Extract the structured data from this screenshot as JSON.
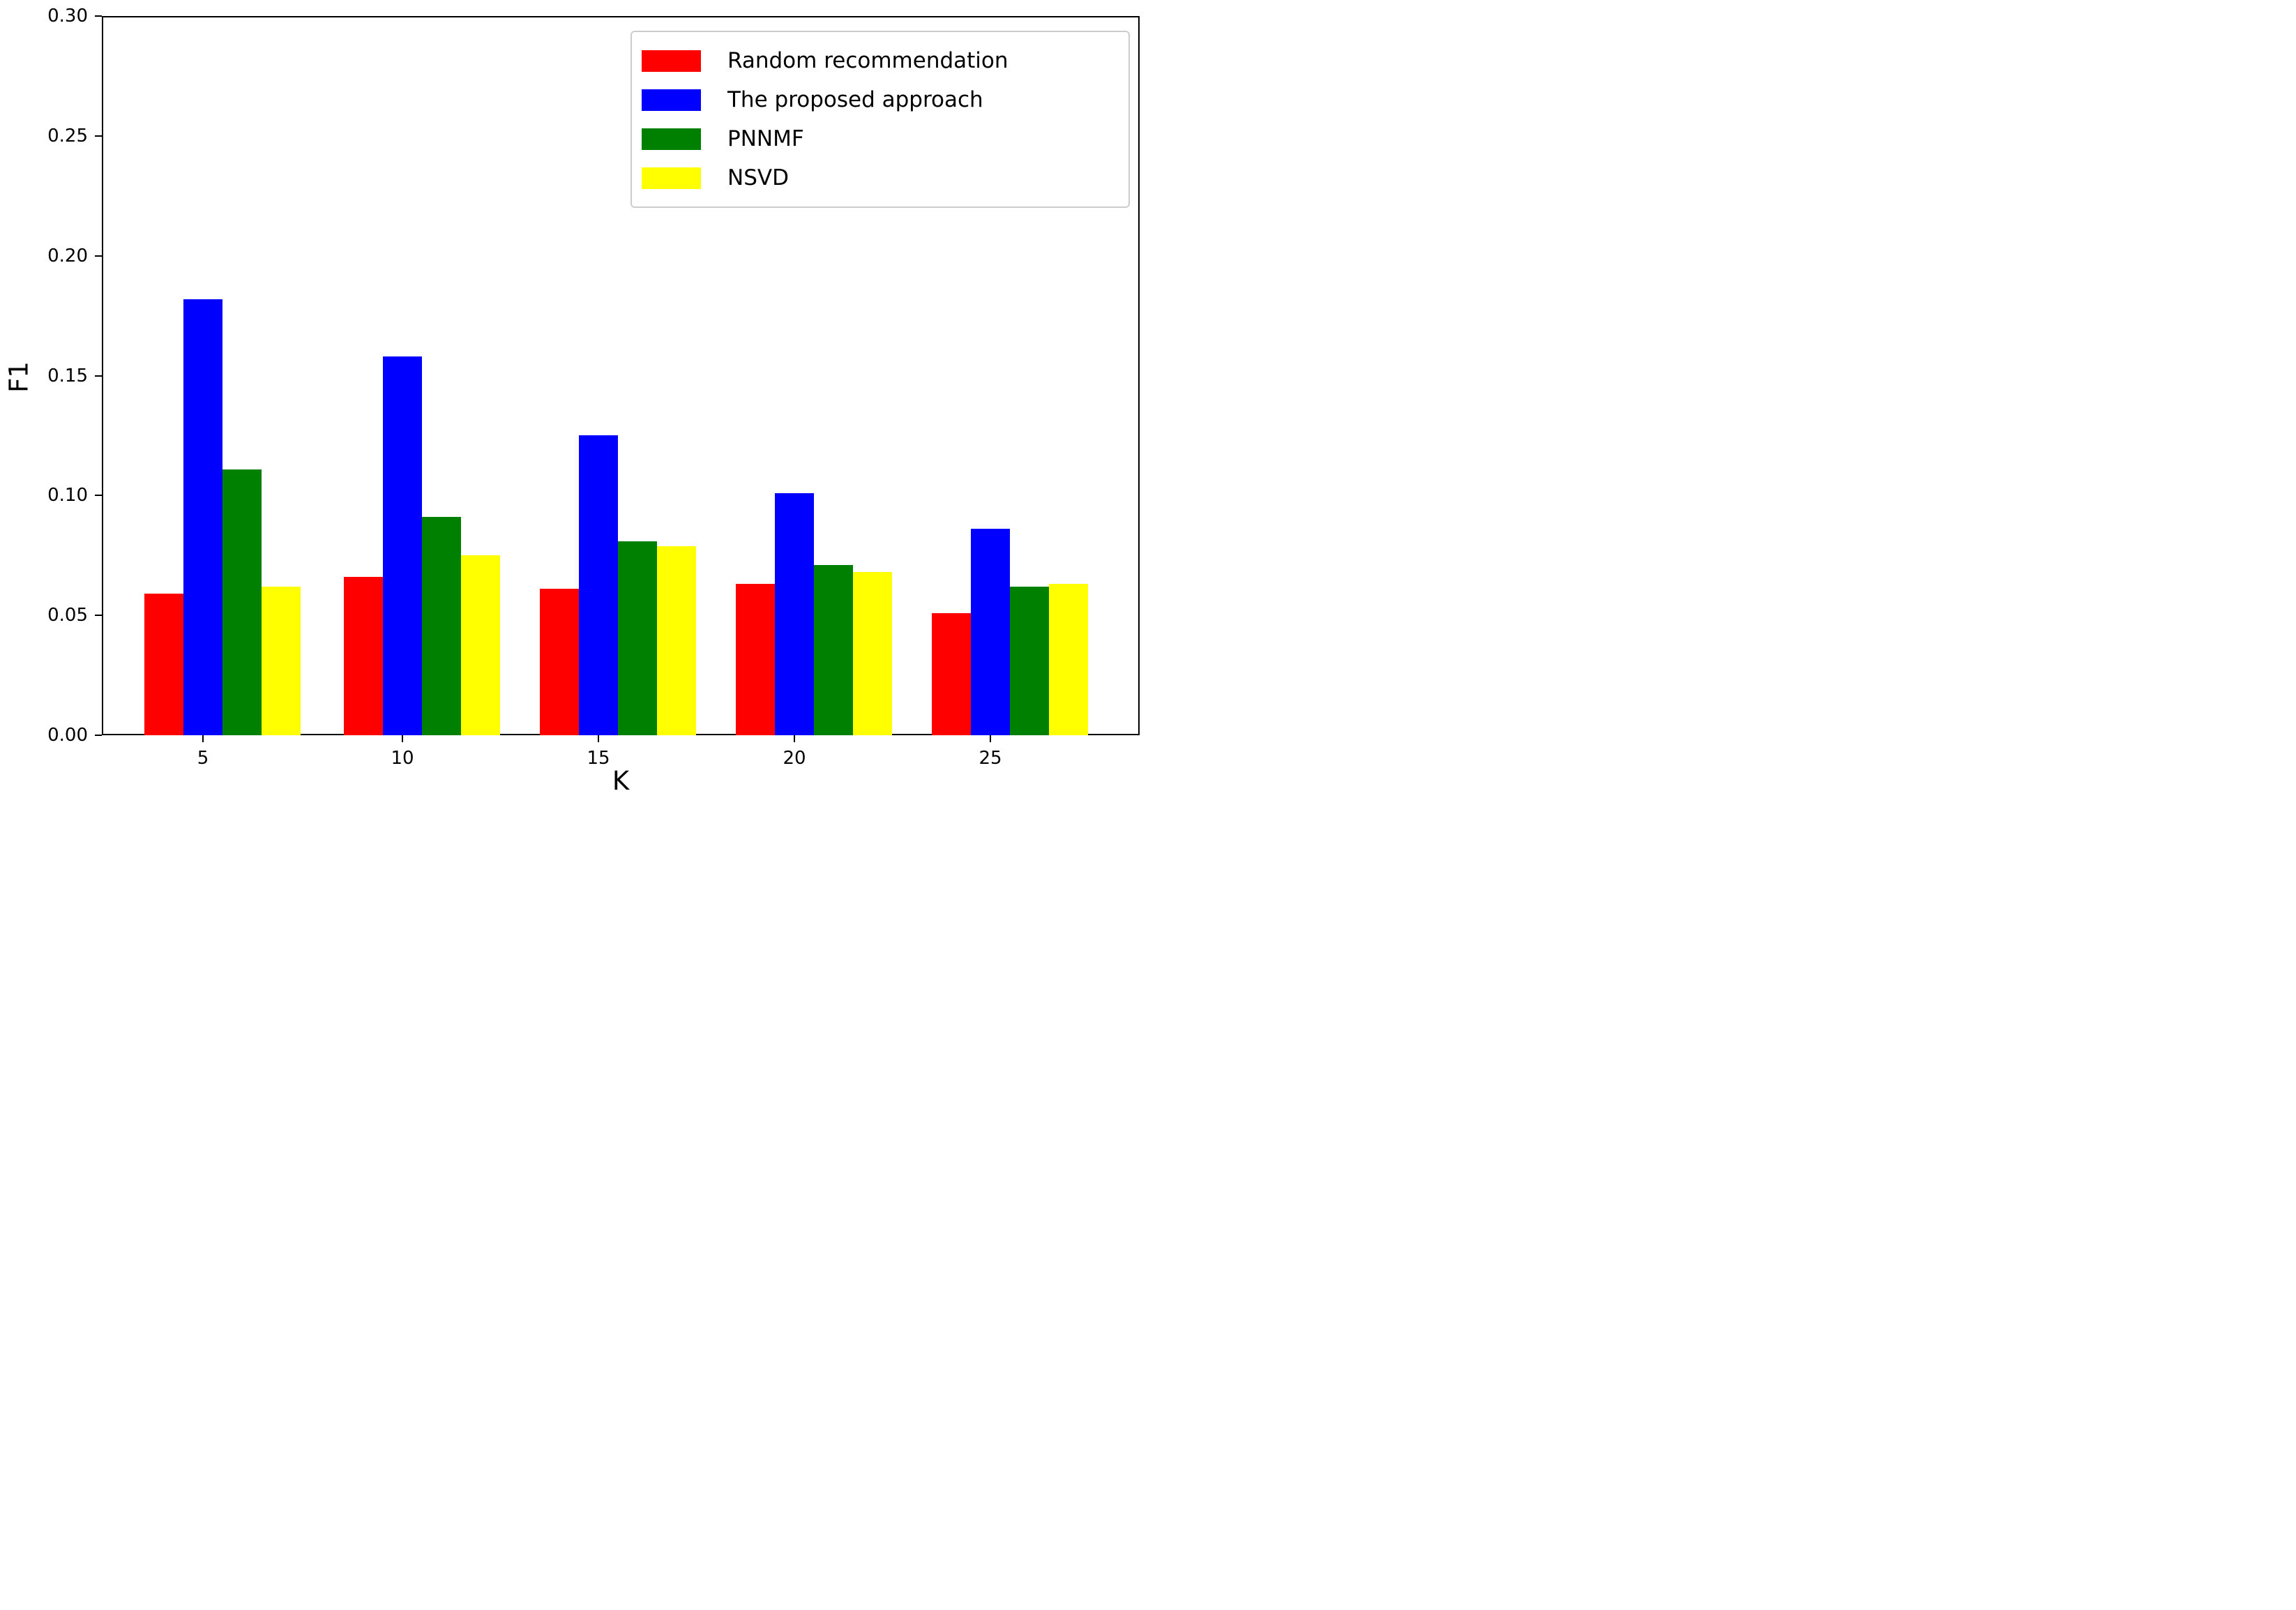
{
  "chart_data": {
    "type": "bar",
    "title": "",
    "xlabel": "K",
    "ylabel": "F1",
    "categories": [
      "5",
      "10",
      "15",
      "20",
      "25"
    ],
    "ylim": [
      0.0,
      0.3
    ],
    "ytick_labels": [
      "0.00",
      "0.05",
      "0.10",
      "0.15",
      "0.20",
      "0.25",
      "0.30"
    ],
    "ytick_values": [
      0.0,
      0.05,
      0.1,
      0.15,
      0.2,
      0.25,
      0.3
    ],
    "grid": false,
    "legend_position": "upper right",
    "series": [
      {
        "name": "Random recommendation",
        "color": "#ff0000",
        "values": [
          0.059,
          0.066,
          0.061,
          0.063,
          0.051
        ]
      },
      {
        "name": "The proposed approach",
        "color": "#0000ff",
        "values": [
          0.182,
          0.158,
          0.125,
          0.101,
          0.086
        ]
      },
      {
        "name": "PNNMF",
        "color": "#008000",
        "values": [
          0.111,
          0.091,
          0.081,
          0.071,
          0.062
        ]
      },
      {
        "name": "NSVD",
        "color": "#ffff00",
        "values": [
          0.062,
          0.075,
          0.079,
          0.068,
          0.063
        ]
      }
    ]
  }
}
